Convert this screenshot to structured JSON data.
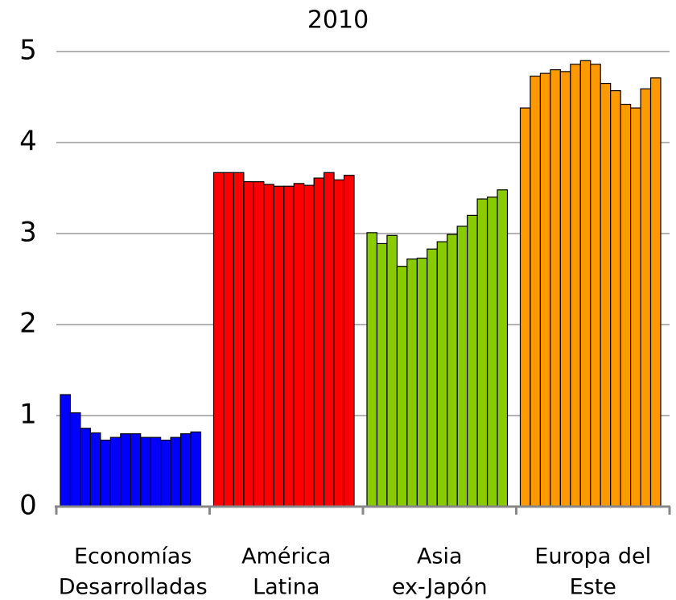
{
  "chart_data": {
    "type": "grouped_bar",
    "title": "2010",
    "groups": [
      {
        "label": [
          "Economías",
          "Desarrolladas"
        ],
        "color": "#0000ff",
        "values": [
          1.23,
          1.03,
          0.86,
          0.81,
          0.73,
          0.76,
          0.8,
          0.8,
          0.76,
          0.76,
          0.73,
          0.76,
          0.8,
          0.82
        ]
      },
      {
        "label": [
          "América",
          "Latina"
        ],
        "color": "#ff0000",
        "values": [
          3.67,
          3.67,
          3.67,
          3.57,
          3.57,
          3.54,
          3.52,
          3.52,
          3.55,
          3.53,
          3.61,
          3.67,
          3.59,
          3.64
        ]
      },
      {
        "label": [
          "Asia",
          "ex-Japón"
        ],
        "color": "#88cc00",
        "values": [
          3.01,
          2.89,
          2.98,
          2.64,
          2.72,
          2.73,
          2.83,
          2.91,
          2.99,
          3.08,
          3.2,
          3.38,
          3.4,
          3.48
        ]
      },
      {
        "label": [
          "Europa del",
          "Este"
        ],
        "color": "#ff9900",
        "values": [
          4.38,
          4.73,
          4.76,
          4.8,
          4.78,
          4.86,
          4.9,
          4.86,
          4.65,
          4.57,
          4.42,
          4.38,
          4.59,
          4.71
        ]
      }
    ],
    "ylim": [
      0,
      5
    ],
    "yticks": [
      0,
      1,
      2,
      3,
      4,
      5
    ],
    "grid": true
  }
}
